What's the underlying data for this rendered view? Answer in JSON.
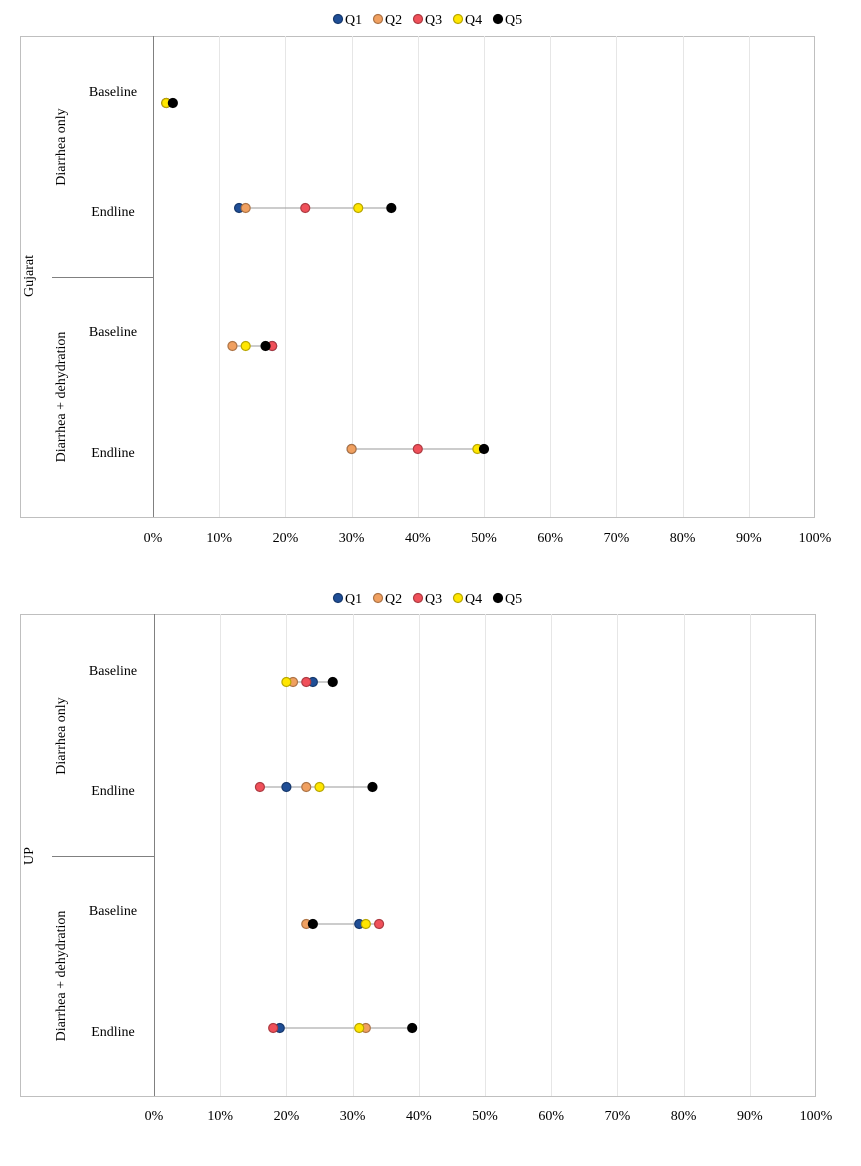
{
  "chart_data": [
    {
      "type": "scatter",
      "region": "Gujarat",
      "xlim": [
        0,
        100
      ],
      "x_ticks": [
        "0%",
        "10%",
        "20%",
        "30%",
        "40%",
        "50%",
        "60%",
        "70%",
        "80%",
        "90%",
        "100%"
      ],
      "grid": true,
      "legend_position": "top",
      "series": [
        {
          "name": "Q1",
          "color": "#1f4e96"
        },
        {
          "name": "Q2",
          "color": "#f0a060"
        },
        {
          "name": "Q3",
          "color": "#f0505a"
        },
        {
          "name": "Q4",
          "color": "#ffe600"
        },
        {
          "name": "Q5",
          "color": "#000000"
        }
      ],
      "groups": [
        {
          "label": "Diarrhea only",
          "rows": [
            {
              "label": "Baseline",
              "values": [
                2,
                2,
                2,
                2,
                3
              ]
            },
            {
              "label": "Endline",
              "values": [
                13,
                14,
                23,
                31,
                36
              ]
            }
          ]
        },
        {
          "label": "Diarrhea + dehydration",
          "rows": [
            {
              "label": "Baseline",
              "values": [
                18,
                12,
                18,
                14,
                17
              ]
            },
            {
              "label": "Endline",
              "values": [
                30,
                30,
                40,
                49,
                50
              ]
            }
          ]
        }
      ]
    },
    {
      "type": "scatter",
      "region": "UP",
      "xlim": [
        0,
        100
      ],
      "x_ticks": [
        "0%",
        "10%",
        "20%",
        "30%",
        "40%",
        "50%",
        "60%",
        "70%",
        "80%",
        "90%",
        "100%"
      ],
      "grid": true,
      "legend_position": "top",
      "series": [
        {
          "name": "Q1",
          "color": "#1f4e96"
        },
        {
          "name": "Q2",
          "color": "#f0a060"
        },
        {
          "name": "Q3",
          "color": "#f0505a"
        },
        {
          "name": "Q4",
          "color": "#ffe600"
        },
        {
          "name": "Q5",
          "color": "#000000"
        }
      ],
      "groups": [
        {
          "label": "Diarrhea only",
          "rows": [
            {
              "label": "Baseline",
              "values": [
                24,
                21,
                23,
                20,
                27
              ]
            },
            {
              "label": "Endline",
              "values": [
                20,
                23,
                16,
                25,
                33
              ]
            }
          ]
        },
        {
          "label": "Diarrhea + dehydration",
          "rows": [
            {
              "label": "Baseline",
              "values": [
                31,
                23,
                34,
                32,
                24
              ]
            },
            {
              "label": "Endline",
              "values": [
                19,
                32,
                18,
                31,
                39
              ]
            }
          ]
        }
      ]
    }
  ]
}
